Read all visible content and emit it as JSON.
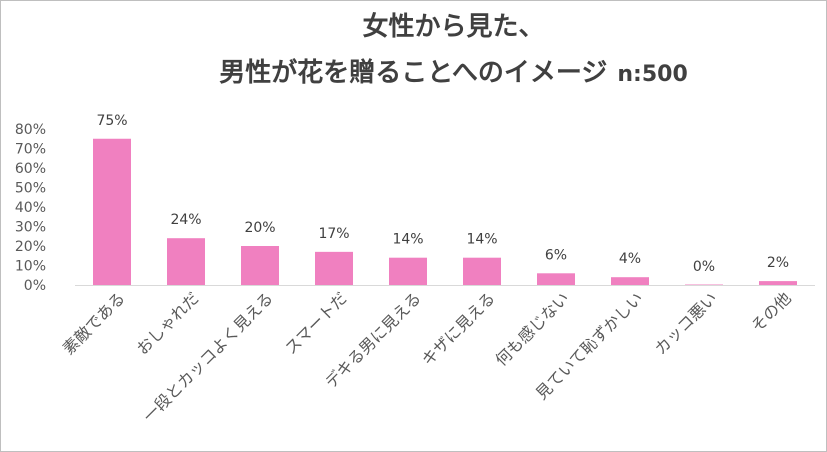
{
  "chart_data": {
    "type": "bar",
    "title_line1": "女性から見た、",
    "title_line2": "男性が花を贈ることへのイメージ",
    "sample_size": "n:500",
    "categories": [
      "素敵である",
      "おしゃれだ",
      "一段とカッコよく見える",
      "スマートだ",
      "デキる男に見える",
      "キザに見える",
      "何も感じない",
      "見ていて恥ずかしい",
      "カッコ悪い",
      "その他"
    ],
    "values": [
      75,
      24,
      20,
      17,
      14,
      14,
      6,
      4,
      0,
      2
    ],
    "data_labels": [
      "75%",
      "24%",
      "20%",
      "17%",
      "14%",
      "14%",
      "6%",
      "4%",
      "0%",
      "2%"
    ],
    "yticks": [
      0,
      10,
      20,
      30,
      40,
      50,
      60,
      70,
      80
    ],
    "ytick_labels": [
      "0%",
      "10%",
      "20%",
      "30%",
      "40%",
      "50%",
      "60%",
      "70%",
      "80%"
    ],
    "ylim": [
      0,
      80
    ],
    "xlabel": "",
    "ylabel": "",
    "grid": false,
    "legend": "none",
    "bar_color": "#f080c0"
  }
}
